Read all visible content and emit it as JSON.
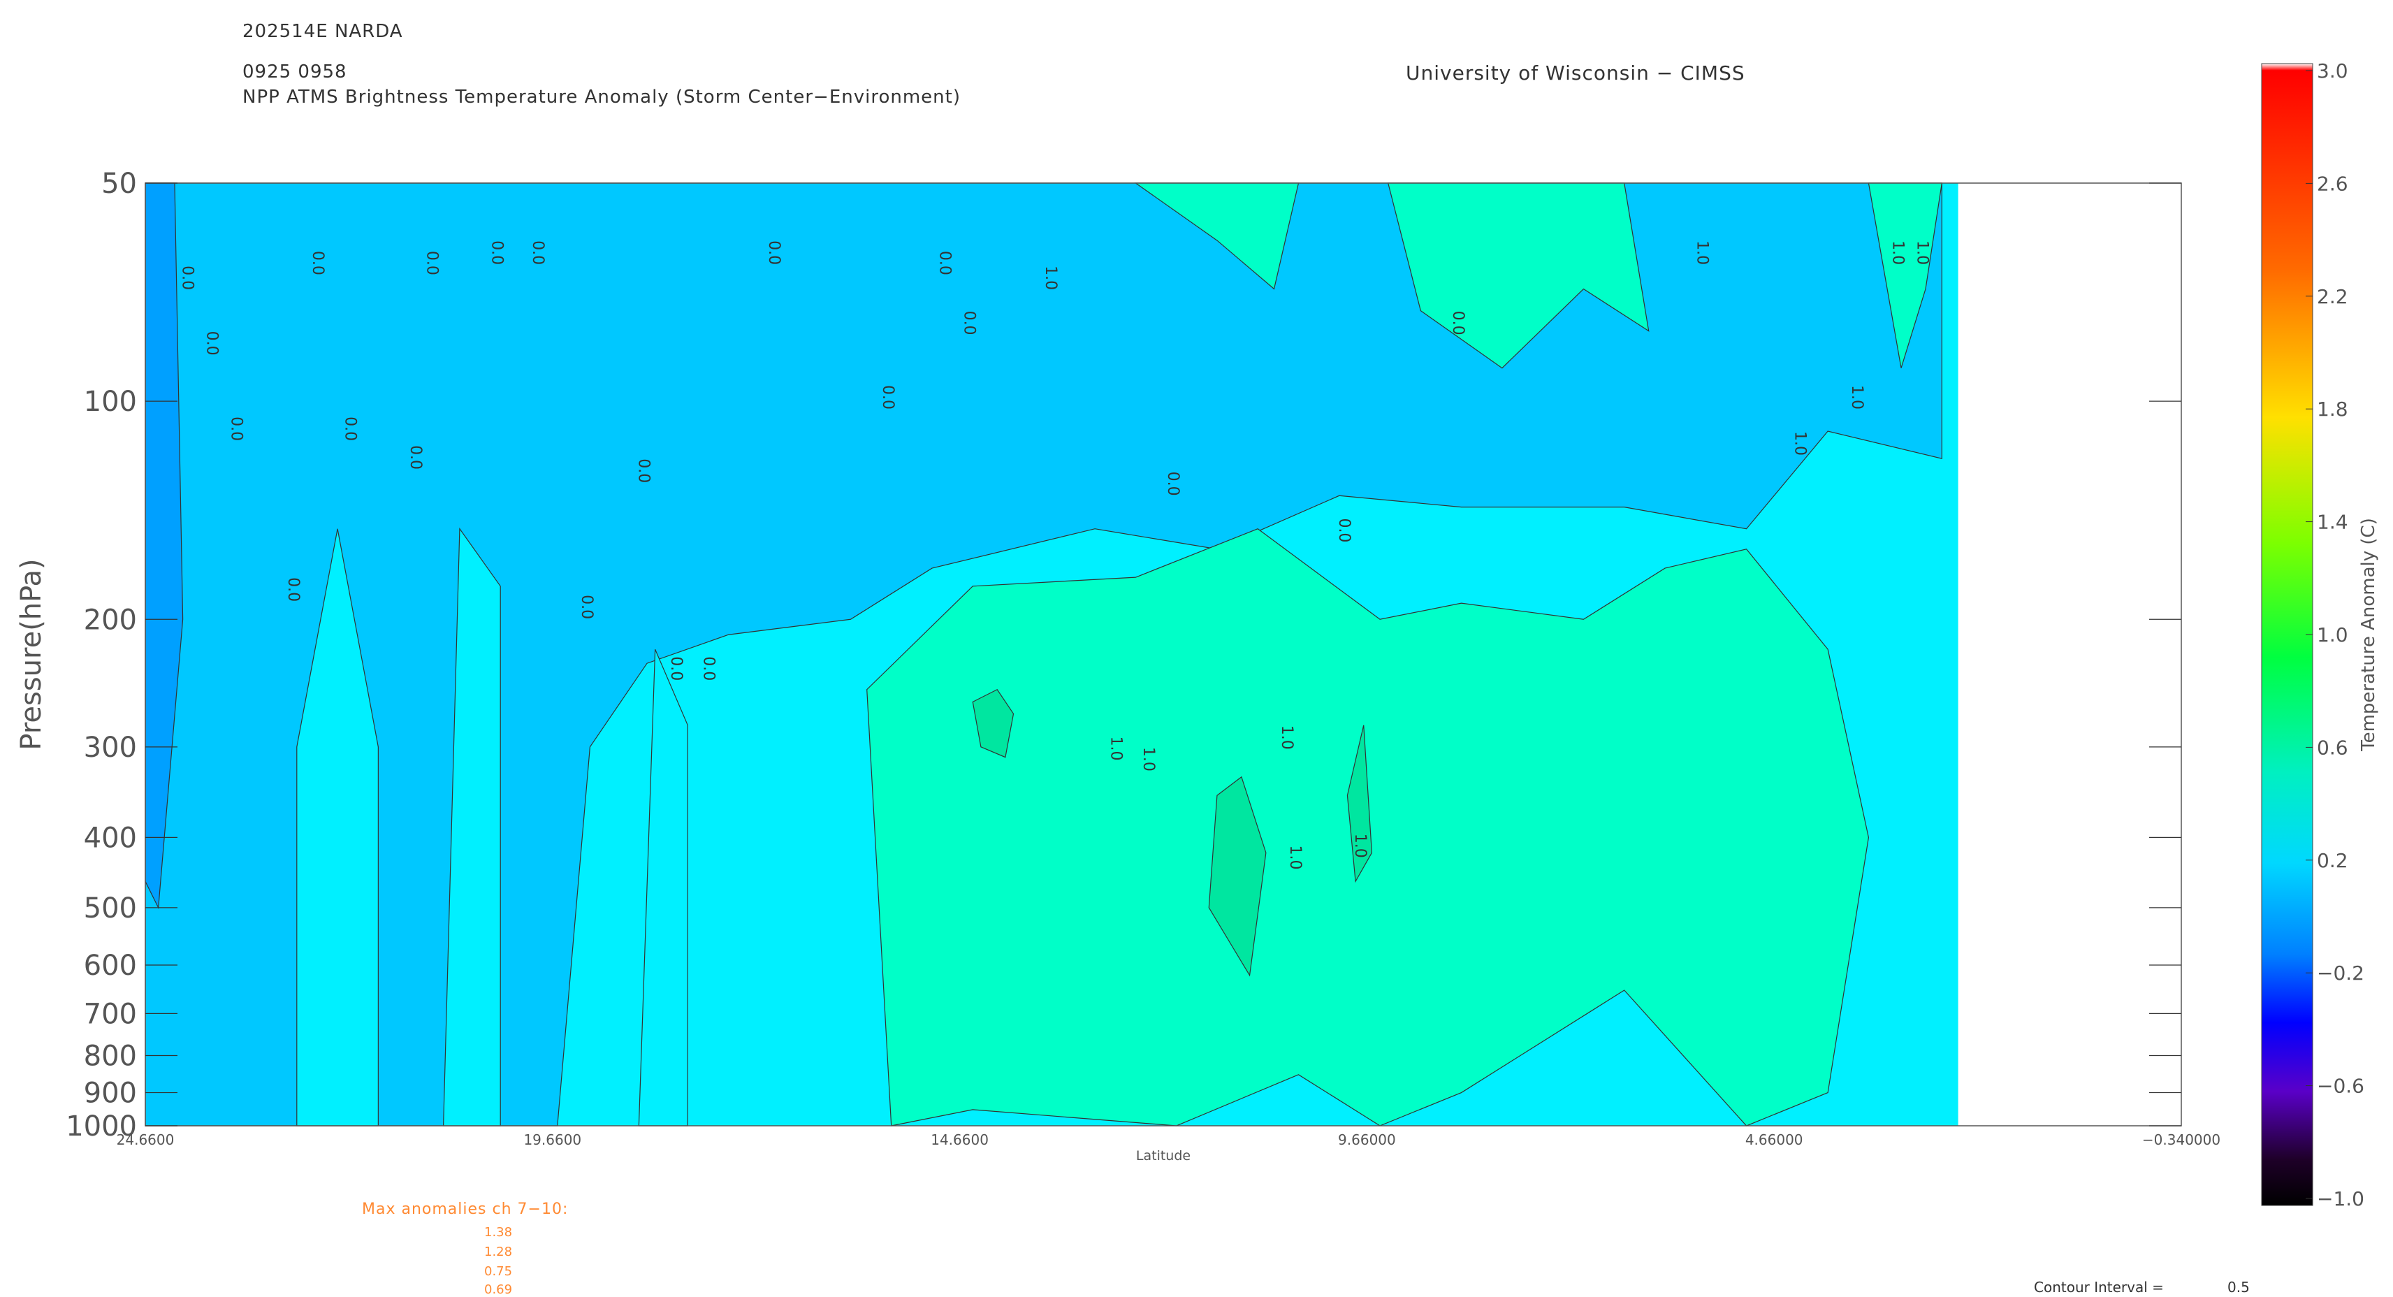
{
  "header": {
    "storm_id": "202514E NARDA",
    "time": "0925 0958",
    "product": "NPP ATMS Brightness Temperature Anomaly (Storm Center−Environment)",
    "institution": "University of Wisconsin − CIMSS"
  },
  "footer": {
    "max_anomalies_title": "Max anomalies ch 7−10:",
    "max_anomalies": [
      "1.38",
      "1.28",
      "0.75",
      "0.69"
    ],
    "contour_interval_label": "Contour Interval =",
    "contour_interval_value": "0.5"
  },
  "chart_data": {
    "type": "heatmap",
    "xlabel": "Latitude",
    "ylabel": "Pressure(hPa)",
    "x_ticks": [
      "24.6600",
      "19.6600",
      "14.6600",
      "9.66000",
      "4.66000",
      "−0.340000"
    ],
    "x_tick_values": [
      24.66,
      19.66,
      14.66,
      9.66,
      4.66,
      -0.34
    ],
    "xlim": [
      24.66,
      -0.34
    ],
    "y_ticks": [
      50,
      100,
      200,
      300,
      400,
      500,
      600,
      700,
      800,
      900,
      1000
    ],
    "ylim": [
      1000,
      50
    ],
    "y_scale": "log",
    "data_extent_lat": [
      24.66,
      2.4
    ],
    "contour_interval": 0.5,
    "contour_labels": [
      "0.0",
      "0.0",
      "0.0",
      "0.0",
      "0.0",
      "0.0",
      "0.0",
      "0.0",
      "0.0",
      "0.0",
      "0.0",
      "0.0",
      "0.0",
      "0.0",
      "0.0",
      "0.0",
      "0.0",
      "0.0",
      "0.0",
      "0.0",
      "0.0",
      "1.0",
      "1.0",
      "1.0",
      "1.0",
      "1.0",
      "1.0",
      "1.0",
      "1.0",
      "1.0",
      "1.0",
      "1.0"
    ],
    "colorbar": {
      "label": "Temperature Anomaly (C)",
      "ticks": [
        "3.0",
        "2.6",
        "2.2",
        "1.8",
        "1.4",
        "1.0",
        "0.6",
        "0.2",
        "−0.2",
        "−0.6",
        "−1.0"
      ],
      "range": [
        -1.0,
        3.0
      ]
    },
    "fill_colors": {
      "band_0_to_0_5": "#00c8ff",
      "band_0_5_to_1": "#00f0ff",
      "band_1_to_1_5": "#00ffc8",
      "band_neg_0_5_to_0": "#00a0ff",
      "band_1_5_plus": "#00e6a0"
    }
  }
}
